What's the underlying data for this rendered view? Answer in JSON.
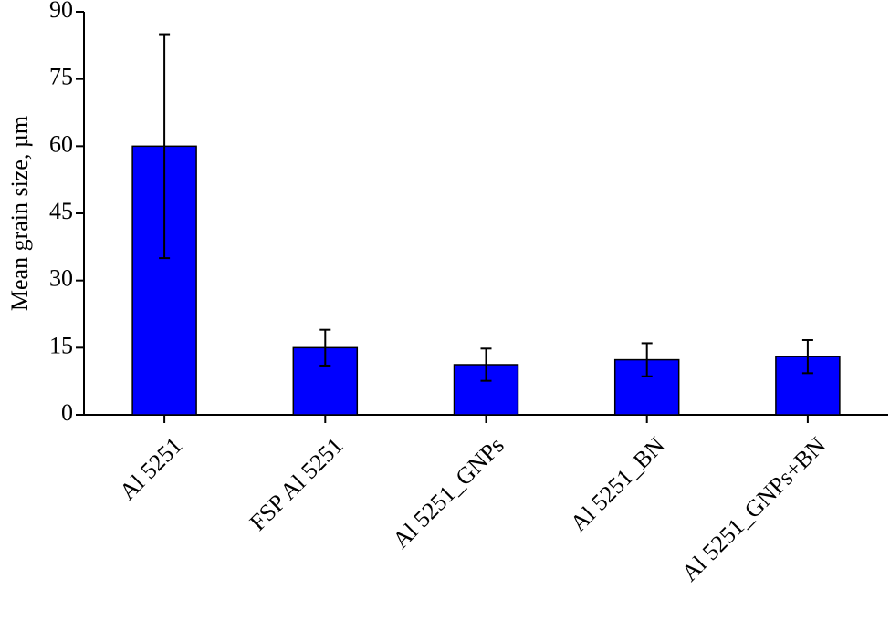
{
  "chart_data": {
    "type": "bar",
    "y_label": "Mean grain size, µm",
    "categories": [
      "Al 5251",
      "FSP Al 5251",
      "Al 5251_GNPs",
      "Al 5251_BN",
      "Al 5251_GNPs+BN"
    ],
    "values": [
      60,
      15,
      11.2,
      12.3,
      13
    ],
    "errors": [
      25,
      4,
      3.6,
      3.7,
      3.7
    ],
    "color": "#0000ff",
    "ylim": [
      0,
      90
    ],
    "yticks": [
      0,
      15,
      30,
      45,
      60,
      75,
      90
    ],
    "grid": false
  }
}
